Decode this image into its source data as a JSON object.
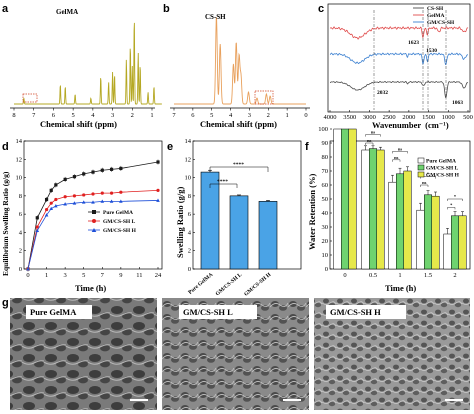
{
  "panels": {
    "a": {
      "letter": "a",
      "sample_label": "GelMA",
      "xlabel": "Chemical shift (ppm)",
      "ticks": [
        "8",
        "7",
        "6",
        "5",
        "4",
        "3",
        "2",
        "1"
      ]
    },
    "b": {
      "letter": "b",
      "sample_label": "CS-SH",
      "xlabel": "Chemical shift (ppm)",
      "ticks": [
        "7",
        "6",
        "5",
        "4",
        "3",
        "2",
        "1",
        "0"
      ]
    },
    "c": {
      "letter": "c",
      "xlabel": "Wavenumber",
      "xunit": "(cm⁻¹)",
      "ticks": [
        "4000",
        "3500",
        "3000",
        "2500",
        "2000",
        "1500",
        "1000",
        "500"
      ],
      "annotations": [
        "1623",
        "1530",
        "2032",
        "1063"
      ],
      "legend": [
        "CS-SH",
        "GelMA",
        "GM/CS-SH"
      ]
    },
    "d": {
      "letter": "d",
      "ylabel": "Equilibrium Swelling Ratio (g/g)",
      "xlabel": "Time (h)",
      "xticks": [
        "0",
        "1",
        "3",
        "5",
        "7",
        "9",
        "11",
        "24"
      ],
      "yticks": [
        "0",
        "2",
        "4",
        "6",
        "8",
        "10",
        "12",
        "14"
      ],
      "legend": [
        "Pure GelMA",
        "GM/CS-SH L",
        "GM/CS-SH H"
      ]
    },
    "e": {
      "letter": "e",
      "ylabel": "Swelling Ratio (g/g)",
      "yticks": [
        "0",
        "2",
        "4",
        "6",
        "8",
        "10",
        "12",
        "14"
      ],
      "categories": [
        "Pure GelMA",
        "GM/CS-SH L",
        "GM/CS-SH H"
      ],
      "sig": [
        "****",
        "****"
      ]
    },
    "f": {
      "letter": "f",
      "ylabel": "Water Retention (%)",
      "xlabel": "Time (h)",
      "xticks": [
        "0",
        "0.5",
        "1",
        "1.5",
        "2"
      ],
      "yticks": [
        "0",
        "10",
        "20",
        "30",
        "40",
        "50",
        "60",
        "70",
        "80",
        "90",
        "100"
      ],
      "legend": [
        "Pure GelMA",
        "GM/CS-SH L",
        "GM/CS-SH H"
      ],
      "sig": [
        "ns",
        "ns",
        "ns",
        "ns",
        "*",
        "ns",
        "*",
        "*",
        "*",
        "*"
      ]
    },
    "g": {
      "letter": "g",
      "labels": [
        "Pure GelMA",
        "GM/CS-SH L",
        "GM/CS-SH H"
      ]
    }
  },
  "colors": {
    "gelma_nmr": "#b5a823",
    "cssh_nmr": "#e8a05c",
    "ftir_cssh": "#4a4a4a",
    "ftir_gelma": "#e04a4a",
    "ftir_gm": "#3a7fd0",
    "pure": "#1a1a1a",
    "gm_l": "#e02020",
    "gm_h": "#1e4fd8",
    "bar_e": "#4aa3e6",
    "bar_pure": "#ffffff",
    "bar_l": "#6fd36f",
    "bar_h": "#e6e84a"
  },
  "chart_data": [
    {
      "type": "line",
      "id": "a",
      "title": "GelMA",
      "xlabel": "Chemical shift (ppm)",
      "x_reversed": true,
      "xlim": [
        8,
        0.5
      ]
    },
    {
      "type": "line",
      "id": "b",
      "title": "CS-SH",
      "xlabel": "Chemical shift (ppm)",
      "x_reversed": true,
      "xlim": [
        7,
        0
      ]
    },
    {
      "type": "line",
      "id": "c",
      "xlabel": "Wavenumber (cm⁻¹)",
      "x_reversed": true,
      "xlim": [
        4000,
        500
      ],
      "series": [
        {
          "name": "CS-SH"
        },
        {
          "name": "GelMA"
        },
        {
          "name": "GM/CS-SH"
        }
      ]
    },
    {
      "type": "line",
      "id": "d",
      "xlabel": "Time (h)",
      "ylabel": "Equilibrium Swelling Ratio (g/g)",
      "ylim": [
        0,
        14
      ],
      "x": [
        0,
        0.5,
        1,
        1.5,
        2,
        3,
        4,
        5,
        6,
        7,
        8,
        9,
        24
      ],
      "series": [
        {
          "name": "Pure GelMA",
          "values": [
            0,
            5.6,
            7.6,
            8.6,
            9.2,
            9.8,
            10.1,
            10.4,
            10.6,
            10.8,
            10.9,
            11.0,
            11.7
          ]
        },
        {
          "name": "GM/CS-SH L",
          "values": [
            0,
            4.6,
            6.5,
            7.2,
            7.6,
            7.9,
            8.0,
            8.1,
            8.2,
            8.3,
            8.3,
            8.4,
            8.6
          ]
        },
        {
          "name": "GM/CS-SH H",
          "values": [
            0,
            4.2,
            5.9,
            6.6,
            6.9,
            7.1,
            7.2,
            7.3,
            7.3,
            7.4,
            7.4,
            7.4,
            7.5
          ]
        }
      ]
    },
    {
      "type": "bar",
      "id": "e",
      "ylabel": "Swelling Ratio (g/g)",
      "ylim": [
        0,
        14
      ],
      "categories": [
        "Pure GelMA",
        "GM/CS-SH L",
        "GM/CS-SH H"
      ],
      "values": [
        10.6,
        8.0,
        7.4
      ],
      "errors": [
        0.2,
        0.1,
        0.1
      ]
    },
    {
      "type": "bar",
      "id": "f",
      "xlabel": "Time (h)",
      "ylabel": "Water Retention (%)",
      "ylim": [
        0,
        100
      ],
      "categories": [
        "0",
        "0.5",
        "1",
        "1.5",
        "2"
      ],
      "series": [
        {
          "name": "Pure GelMA",
          "values": [
            100,
            85,
            62,
            42,
            25
          ],
          "errors": [
            0,
            3,
            5,
            5,
            4
          ]
        },
        {
          "name": "GM/CS-SH L",
          "values": [
            100,
            86,
            68,
            53,
            38
          ],
          "errors": [
            0,
            2,
            4,
            3,
            3
          ]
        },
        {
          "name": "GM/CS-SH H",
          "values": [
            100,
            85,
            70,
            52,
            38
          ],
          "errors": [
            0,
            2,
            3,
            3,
            3
          ]
        }
      ]
    }
  ]
}
